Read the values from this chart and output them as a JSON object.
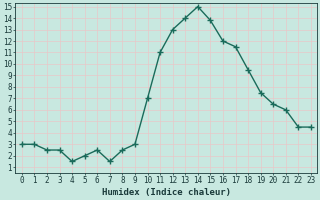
{
  "x": [
    0,
    1,
    2,
    3,
    4,
    5,
    6,
    7,
    8,
    9,
    10,
    11,
    12,
    13,
    14,
    15,
    16,
    17,
    18,
    19,
    20,
    21,
    22,
    23
  ],
  "y": [
    3,
    3,
    2.5,
    2.5,
    1.5,
    2,
    2.5,
    1.5,
    2.5,
    3,
    7,
    11,
    13,
    14,
    15,
    13.8,
    12,
    11.5,
    9.5,
    7.5,
    6.5,
    6,
    4.5,
    4.5
  ],
  "line_color": "#1a6b5a",
  "marker": "+",
  "marker_size": 4,
  "linewidth": 1.0,
  "background_color": "#c8e8e0",
  "grid_color_major": "#e8c8c8",
  "grid_color_minor": "#e8c8c8",
  "xlabel": "Humidex (Indice chaleur)",
  "ylim": [
    1,
    15
  ],
  "xlim": [
    -0.5,
    23.5
  ],
  "yticks": [
    1,
    2,
    3,
    4,
    5,
    6,
    7,
    8,
    9,
    10,
    11,
    12,
    13,
    14,
    15
  ],
  "xticks": [
    0,
    1,
    2,
    3,
    4,
    5,
    6,
    7,
    8,
    9,
    10,
    11,
    12,
    13,
    14,
    15,
    16,
    17,
    18,
    19,
    20,
    21,
    22,
    23
  ],
  "tick_color": "#1a3a3a",
  "label_fontsize": 5.5,
  "xlabel_fontsize": 6.5
}
